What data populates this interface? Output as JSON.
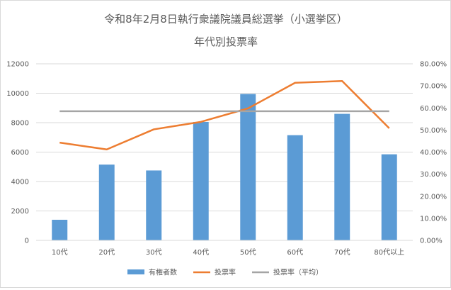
{
  "chart_data": {
    "type": "bar",
    "title": "令和8年2月8日執行衆議院議員総選挙（小選挙区）",
    "subtitle": "年代別投票率",
    "categories": [
      "10代",
      "20代",
      "30代",
      "40代",
      "50代",
      "60代",
      "70代",
      "80代以上"
    ],
    "series": [
      {
        "name": "有権者数",
        "type": "bar",
        "axis": "left",
        "color": "#5b9bd5",
        "values": [
          1400,
          5150,
          4750,
          8050,
          9950,
          7150,
          8600,
          5850
        ]
      },
      {
        "name": "投票率",
        "type": "line",
        "axis": "right",
        "color": "#ed7d31",
        "values": [
          0.443,
          0.412,
          0.503,
          0.537,
          0.598,
          0.714,
          0.722,
          0.508
        ]
      },
      {
        "name": "投票率（平均）",
        "type": "line",
        "axis": "right",
        "color": "#a5a5a5",
        "values": [
          0.585,
          0.585,
          0.585,
          0.585,
          0.585,
          0.585,
          0.585,
          0.585
        ]
      }
    ],
    "y_left": {
      "min": 0,
      "max": 12000,
      "ticks": [
        "0",
        "2000",
        "4000",
        "6000",
        "8000",
        "10000",
        "12000"
      ]
    },
    "y_right": {
      "min": 0,
      "max": 0.8,
      "ticks": [
        "0.00%",
        "10.00%",
        "20.00%",
        "30.00%",
        "40.00%",
        "50.00%",
        "60.00%",
        "70.00%",
        "80.00%"
      ]
    },
    "grid": true,
    "legend": "bottom"
  }
}
